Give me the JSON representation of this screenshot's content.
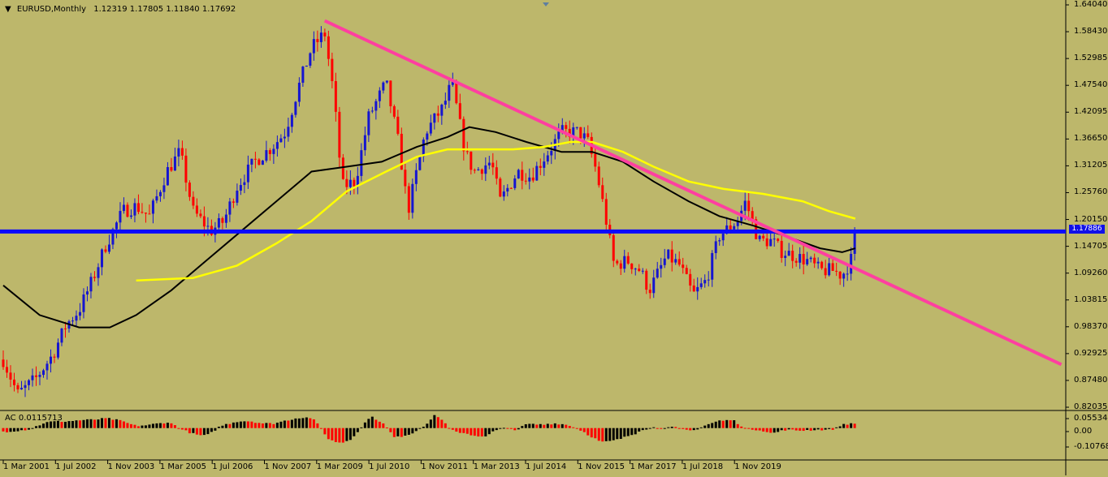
{
  "header": {
    "symbol_label": "EURUSD,Monthly",
    "ohlc": "1.12319 1.17805 1.11840 1.17692",
    "menu_icon": "triangle-down-icon"
  },
  "indicator": {
    "label": "AC 0.0115713"
  },
  "price_axis": [
    "1.64040",
    "1.58430",
    "1.52985",
    "1.47540",
    "1.42095",
    "1.36650",
    "1.31205",
    "1.25760",
    "1.20150",
    "1.14705",
    "1.09260",
    "1.03815",
    "0.98370",
    "0.92925",
    "0.87480",
    "0.82035"
  ],
  "current_price": "1.17886",
  "ac_axis": [
    "0.0553443",
    "0.00",
    "-0.107685"
  ],
  "time_axis": [
    "1 Mar 2001",
    "1 Jul 2002",
    "1 Nov 2003",
    "1 Mar 2005",
    "1 Jul 2006",
    "1 Nov 2007",
    "1 Mar 2009",
    "1 Jul 2010",
    "1 Nov 2011",
    "1 Mar 2013",
    "1 Jul 2014",
    "1 Nov 2015",
    "1 Mar 2017",
    "1 Jul 2018",
    "1 Nov 2019"
  ],
  "colors": {
    "background": "#BDB76B",
    "bull": "#1515d0",
    "bear": "#ff0000",
    "trendline": "#ff3fa0",
    "support": "#0a0aff",
    "ma_fast": "#ffff00",
    "ma_slow": "#000000",
    "ac_up": "#000000",
    "ac_down": "#ff0000"
  },
  "chart_data": {
    "type": "candlestick",
    "series_path": [
      [
        2001.17,
        0.92
      ],
      [
        2001.5,
        0.85
      ],
      [
        2001.9,
        0.88
      ],
      [
        2002.3,
        0.93
      ],
      [
        2002.6,
        0.99
      ],
      [
        2002.9,
        1.02
      ],
      [
        2003.2,
        1.08
      ],
      [
        2003.5,
        1.15
      ],
      [
        2003.9,
        1.22
      ],
      [
        2004.2,
        1.23
      ],
      [
        2004.5,
        1.21
      ],
      [
        2004.9,
        1.3
      ],
      [
        2005.2,
        1.34
      ],
      [
        2005.5,
        1.22
      ],
      [
        2005.9,
        1.18
      ],
      [
        2006.2,
        1.2
      ],
      [
        2006.5,
        1.27
      ],
      [
        2006.9,
        1.32
      ],
      [
        2007.3,
        1.35
      ],
      [
        2007.6,
        1.38
      ],
      [
        2007.9,
        1.47
      ],
      [
        2008.2,
        1.55
      ],
      [
        2008.5,
        1.58
      ],
      [
        2008.7,
        1.46
      ],
      [
        2008.9,
        1.27
      ],
      [
        2009.2,
        1.28
      ],
      [
        2009.5,
        1.41
      ],
      [
        2009.9,
        1.48
      ],
      [
        2010.2,
        1.35
      ],
      [
        2010.4,
        1.22
      ],
      [
        2010.8,
        1.38
      ],
      [
        2011.2,
        1.43
      ],
      [
        2011.4,
        1.48
      ],
      [
        2011.7,
        1.34
      ],
      [
        2011.9,
        1.3
      ],
      [
        2012.3,
        1.32
      ],
      [
        2012.5,
        1.24
      ],
      [
        2012.9,
        1.3
      ],
      [
        2013.2,
        1.29
      ],
      [
        2013.6,
        1.34
      ],
      [
        2013.9,
        1.38
      ],
      [
        2014.3,
        1.38
      ],
      [
        2014.5,
        1.36
      ],
      [
        2014.7,
        1.3
      ],
      [
        2014.9,
        1.21
      ],
      [
        2015.1,
        1.11
      ],
      [
        2015.4,
        1.12
      ],
      [
        2015.7,
        1.1
      ],
      [
        2015.9,
        1.06
      ],
      [
        2016.3,
        1.13
      ],
      [
        2016.6,
        1.11
      ],
      [
        2016.9,
        1.05
      ],
      [
        2017.2,
        1.08
      ],
      [
        2017.5,
        1.17
      ],
      [
        2017.9,
        1.2
      ],
      [
        2018.1,
        1.24
      ],
      [
        2018.4,
        1.16
      ],
      [
        2018.7,
        1.16
      ],
      [
        2018.9,
        1.14
      ],
      [
        2019.2,
        1.13
      ],
      [
        2019.5,
        1.12
      ],
      [
        2019.8,
        1.1
      ],
      [
        2020.1,
        1.1
      ],
      [
        2020.3,
        1.09
      ],
      [
        2020.5,
        1.12
      ],
      [
        2020.6,
        1.18
      ]
    ],
    "support_level": 1.17886,
    "trendline": [
      [
        2008.5,
        1.605
      ],
      [
        2020.6,
        1.18
      ],
      [
        2025.3,
        0.91
      ]
    ],
    "ma_fast": [
      [
        2004.2,
        1.08
      ],
      [
        2005.5,
        1.085
      ],
      [
        2006.5,
        1.11
      ],
      [
        2007.4,
        1.155
      ],
      [
        2008.2,
        1.2
      ],
      [
        2009.0,
        1.26
      ],
      [
        2009.9,
        1.3
      ],
      [
        2010.6,
        1.33
      ],
      [
        2011.3,
        1.345
      ],
      [
        2012.0,
        1.345
      ],
      [
        2012.8,
        1.345
      ],
      [
        2013.5,
        1.35
      ],
      [
        2014.1,
        1.36
      ],
      [
        2014.6,
        1.36
      ],
      [
        2015.3,
        1.34
      ],
      [
        2016.0,
        1.31
      ],
      [
        2016.8,
        1.28
      ],
      [
        2017.6,
        1.265
      ],
      [
        2018.5,
        1.255
      ],
      [
        2019.4,
        1.24
      ],
      [
        2020.0,
        1.22
      ],
      [
        2020.6,
        1.205
      ]
    ],
    "ma_slow": [
      [
        2001.17,
        1.07
      ],
      [
        2002.0,
        1.01
      ],
      [
        2002.9,
        0.985
      ],
      [
        2003.6,
        0.985
      ],
      [
        2004.2,
        1.01
      ],
      [
        2005.0,
        1.06
      ],
      [
        2005.8,
        1.12
      ],
      [
        2006.6,
        1.18
      ],
      [
        2007.4,
        1.24
      ],
      [
        2008.2,
        1.3
      ],
      [
        2009.0,
        1.31
      ],
      [
        2009.8,
        1.32
      ],
      [
        2010.6,
        1.35
      ],
      [
        2011.3,
        1.37
      ],
      [
        2011.8,
        1.39
      ],
      [
        2012.4,
        1.38
      ],
      [
        2013.1,
        1.36
      ],
      [
        2013.9,
        1.34
      ],
      [
        2014.6,
        1.34
      ],
      [
        2015.3,
        1.32
      ],
      [
        2016.0,
        1.28
      ],
      [
        2016.8,
        1.24
      ],
      [
        2017.5,
        1.21
      ],
      [
        2018.3,
        1.19
      ],
      [
        2019.0,
        1.17
      ],
      [
        2019.8,
        1.145
      ],
      [
        2020.3,
        1.137
      ],
      [
        2020.6,
        1.145
      ]
    ],
    "y_range": [
      0.82035,
      1.6404
    ],
    "x_range": [
      2001.17,
      2025.4
    ],
    "ac_range": [
      -0.107685,
      0.0553443
    ]
  }
}
